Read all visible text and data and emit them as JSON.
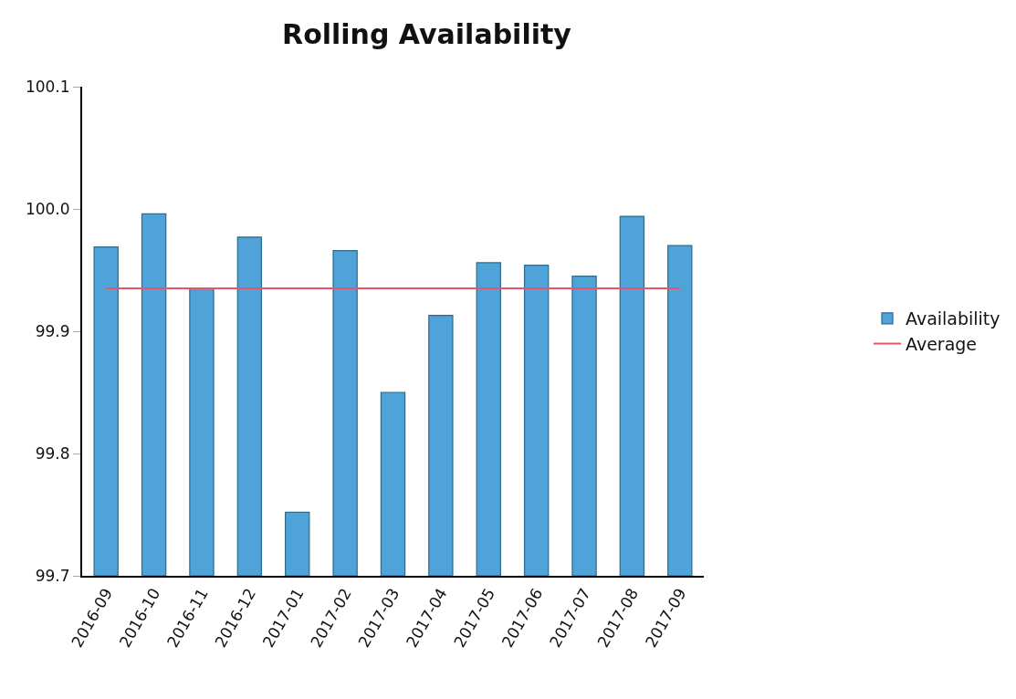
{
  "chart_data": {
    "type": "bar",
    "title": "Rolling Availability",
    "categories": [
      "2016-09",
      "2016-10",
      "2016-11",
      "2016-12",
      "2017-01",
      "2017-02",
      "2017-03",
      "2017-04",
      "2017-05",
      "2017-06",
      "2017-07",
      "2017-08",
      "2017-09"
    ],
    "series": [
      {
        "name": "Availability",
        "color": "#4fa3d9",
        "values": [
          99.969,
          99.996,
          99.935,
          99.977,
          99.752,
          99.966,
          99.85,
          99.913,
          99.956,
          99.954,
          99.945,
          99.994,
          99.97
        ]
      },
      {
        "name": "Average",
        "type": "line",
        "color": "#e8546a",
        "values": [
          99.935,
          99.935,
          99.935,
          99.935,
          99.935,
          99.935,
          99.935,
          99.935,
          99.935,
          99.935,
          99.935,
          99.935,
          99.935
        ]
      }
    ],
    "ylim": [
      99.7,
      100.1
    ],
    "yticks": [
      {
        "value": 99.7,
        "label": "99.7"
      },
      {
        "value": 99.8,
        "label": "99.8"
      },
      {
        "value": 99.9,
        "label": "99.9"
      },
      {
        "value": 100.0,
        "label": "100.0"
      },
      {
        "value": 100.1,
        "label": "100.1"
      }
    ],
    "legend": "right",
    "marker": "none"
  }
}
